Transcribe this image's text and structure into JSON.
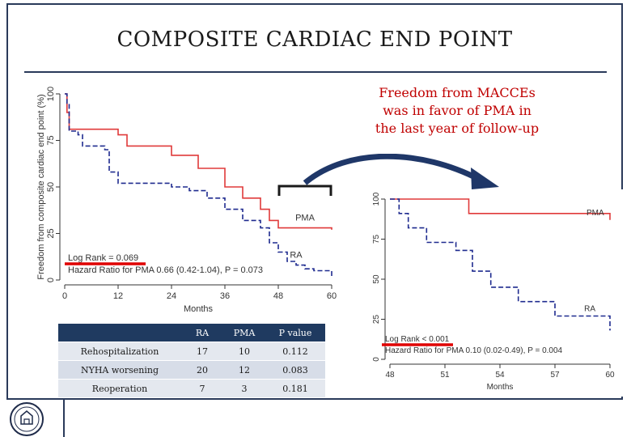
{
  "slide": {
    "title": "COMPOSITE CARDIAC END POINT",
    "callout": [
      "Freedom from MACCEs",
      "was in favor of PMA in",
      "the last year of follow-up"
    ]
  },
  "colors": {
    "pma": "#e03a3a",
    "ra": "#1f2b8f",
    "highlight": "#e00000",
    "table_header": "#1f3a60",
    "arrow": "#1f3768"
  },
  "chart_data": [
    {
      "type": "line",
      "title": "",
      "xlabel": "Months",
      "ylabel": "Freedom from composite cardiac end point (%)",
      "xlim": [
        0,
        60
      ],
      "ylim": [
        0,
        100
      ],
      "xticks": [
        0,
        12,
        24,
        36,
        48,
        60
      ],
      "yticks": [
        0,
        25,
        50,
        75,
        100
      ],
      "annotations": [
        "Log Rank = 0.069",
        "Hazard Ratio for PMA 0.66 (0.42-1.04), P = 0.073"
      ],
      "series": [
        {
          "name": "PMA",
          "step": true,
          "x": [
            0,
            0.5,
            1,
            12,
            14,
            24,
            30,
            36,
            40,
            44,
            46,
            48,
            51,
            60
          ],
          "y": [
            100,
            90,
            81,
            78,
            72,
            67,
            60,
            50,
            44,
            38,
            32,
            28,
            28,
            27
          ]
        },
        {
          "name": "RA",
          "step": true,
          "x": [
            0,
            0.5,
            1,
            3,
            4,
            9,
            10,
            12,
            24,
            28,
            32,
            36,
            40,
            44,
            46,
            48,
            50,
            52,
            54,
            56,
            57,
            60
          ],
          "y": [
            100,
            95,
            80,
            78,
            72,
            70,
            58,
            52,
            50,
            48,
            44,
            38,
            32,
            28,
            20,
            15,
            10,
            8,
            6,
            5,
            5,
            2
          ]
        }
      ]
    },
    {
      "type": "line",
      "title": "",
      "xlabel": "Months",
      "ylabel": "",
      "xlim": [
        48,
        60
      ],
      "ylim": [
        0,
        100
      ],
      "xticks": [
        48,
        51,
        54,
        57,
        60
      ],
      "yticks": [
        0,
        25,
        50,
        75,
        100
      ],
      "annotations": [
        "Log Rank < 0.001",
        "Hazard Ratio for PMA 0.10 (0.02-0.49), P = 0.004"
      ],
      "series": [
        {
          "name": "PMA",
          "step": true,
          "x": [
            48,
            52,
            52.3,
            60
          ],
          "y": [
            100,
            100,
            91,
            87
          ]
        },
        {
          "name": "RA",
          "step": true,
          "x": [
            48,
            48.5,
            49,
            50,
            51,
            51.6,
            52.5,
            53.5,
            55,
            57,
            59,
            60
          ],
          "y": [
            100,
            91,
            82,
            73,
            73,
            68,
            55,
            45,
            36,
            27,
            27,
            18
          ]
        }
      ]
    }
  ],
  "table": {
    "headers": [
      "",
      "RA",
      "PMA",
      "P value"
    ],
    "rows": [
      [
        "Rehospitalization",
        "17",
        "10",
        "0.112"
      ],
      [
        "NYHA worsening",
        "20",
        "12",
        "0.083"
      ],
      [
        "Reoperation",
        "7",
        "3",
        "0.181"
      ]
    ]
  }
}
